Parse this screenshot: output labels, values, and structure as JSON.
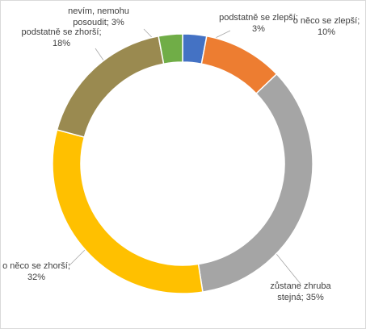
{
  "chart_data": {
    "type": "donut",
    "values": [
      3,
      10,
      35,
      32,
      18,
      3
    ],
    "value_labels": [
      "podstatně se zlepší; 3%",
      "o něco se zlepší; 10%",
      "zůstane zhruba stejná; 35%",
      "o něco se zhorší; 32%",
      "podstatně se zhorší; 18%",
      "nevím, nemohu posoudit; 3%"
    ],
    "colors": [
      "#4472c4",
      "#ed7d31",
      "#a5a5a5",
      "#ffc000",
      "#9a8a50",
      "#70ad47"
    ]
  }
}
